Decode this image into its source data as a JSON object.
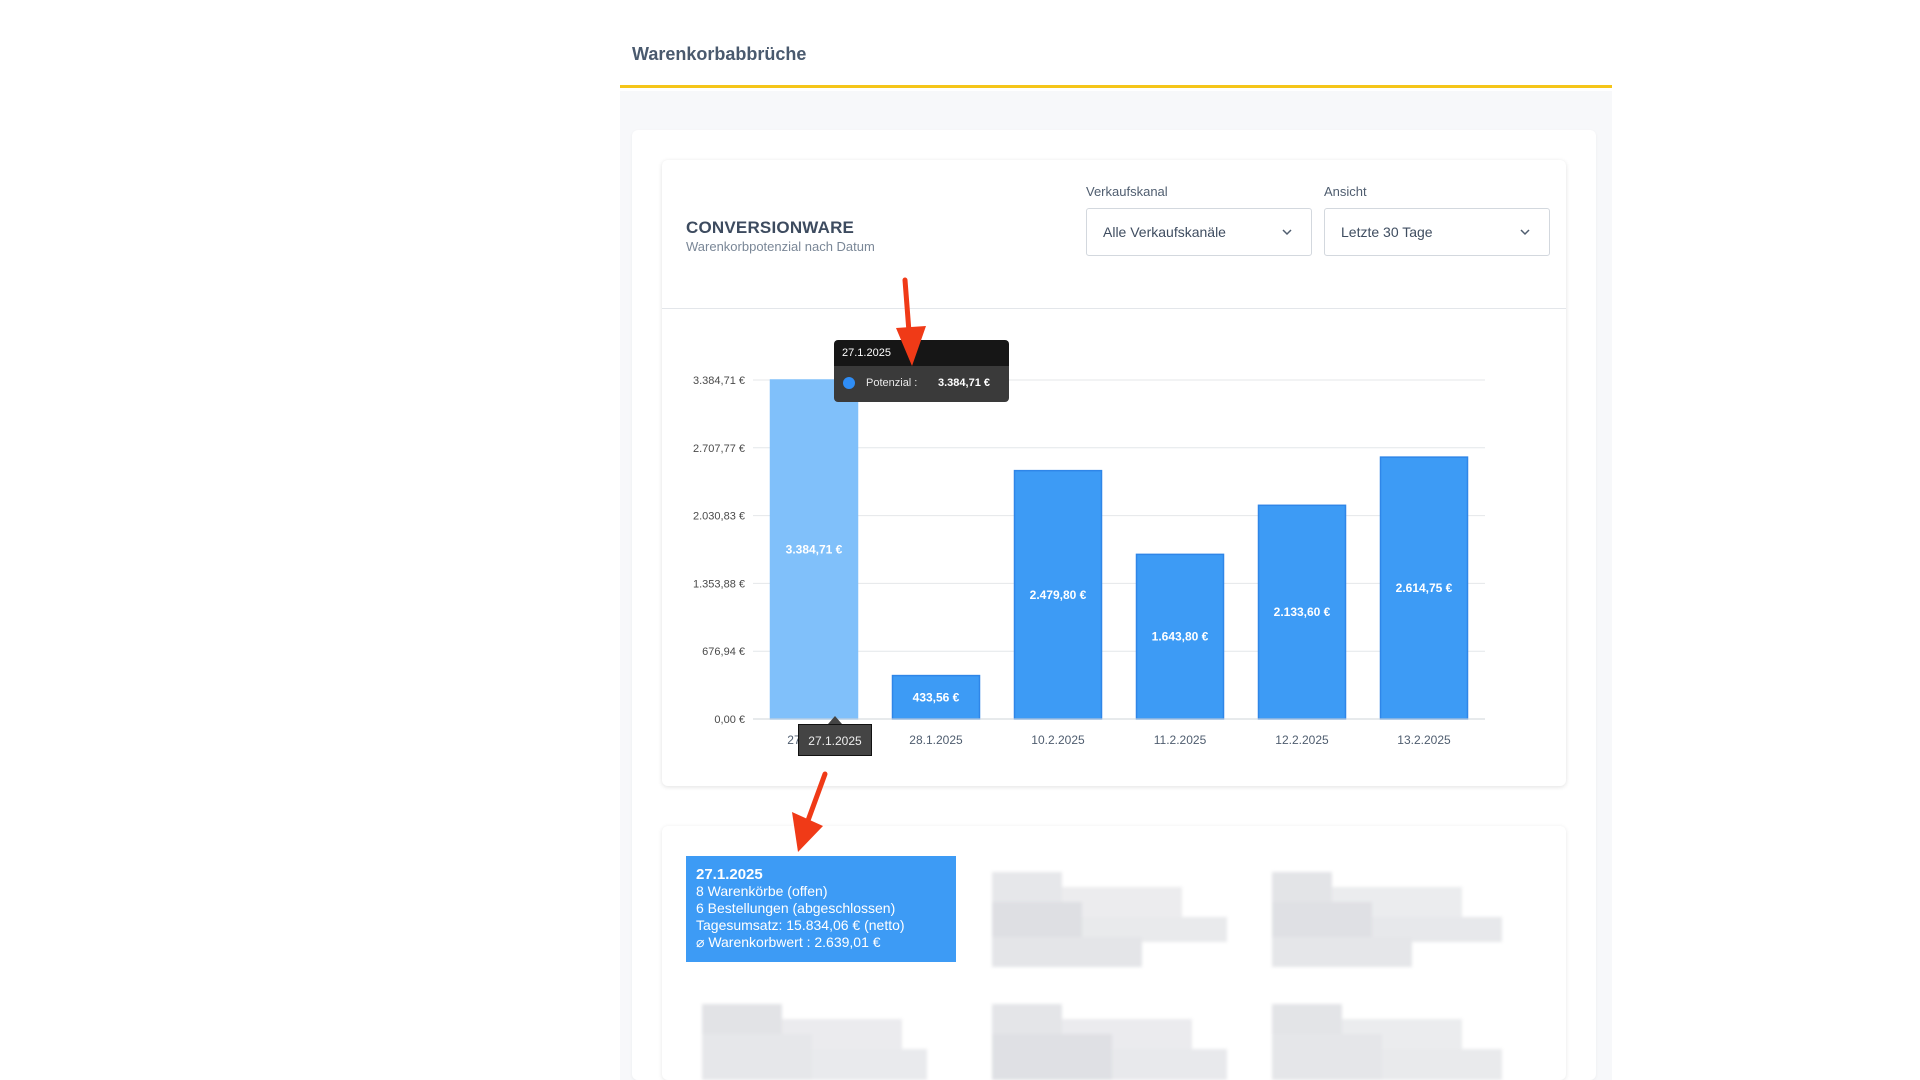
{
  "page": {
    "title": "Warenkorbabbrüche"
  },
  "chart_card": {
    "title": "CONVERSIONWARE",
    "subtitle": "Warenkorbpotenzial nach Datum",
    "filters": {
      "channel": {
        "label": "Verkaufskanal",
        "value": "Alle Verkaufskanäle"
      },
      "view": {
        "label": "Ansicht",
        "value": "Letzte 30 Tage"
      }
    }
  },
  "chart_data": {
    "type": "bar",
    "categories": [
      "27.1.2025",
      "28.1.2025",
      "10.2.2025",
      "11.2.2025",
      "12.2.2025",
      "13.2.2025"
    ],
    "values": [
      3384.71,
      433.56,
      2479.8,
      1643.8,
      2133.6,
      2614.75
    ],
    "value_labels": [
      "3.384,71 €",
      "433,56 €",
      "2.479,80 €",
      "1.643,80 €",
      "2.133,60 €",
      "2.614,75 €"
    ],
    "y_ticks": [
      0,
      676.94,
      1353.88,
      2030.83,
      2707.77,
      3384.71
    ],
    "y_tick_labels": [
      "0,00 €",
      "676,94 €",
      "1.353,88 €",
      "2.030,83 €",
      "2.707,77 €",
      "3.384,71 €"
    ],
    "ylim": [
      0,
      3384.71
    ],
    "grid": true,
    "highlighted_index": 0,
    "colors": {
      "bar": "#3d9bf5",
      "bar_highlight": "#80c0fa",
      "bar_border": "#2f86e8",
      "grid": "#e4e7ea"
    }
  },
  "tooltip": {
    "date": "27.1.2025",
    "series_label": "Potenzial :",
    "value": "3.384,71 €"
  },
  "axis_tooltip": "27.1.2025",
  "day_card": {
    "date": "27.1.2025",
    "lines": [
      "8 Warenkörbe (offen)",
      "6 Bestellungen (abgeschlossen)",
      "Tagesumsatz: 15.834,06 € (netto)",
      "⌀ Warenkorbwert : 2.639,01 €"
    ]
  },
  "colors": {
    "accent_line": "#f5c518",
    "annotation_arrow": "#f03a17",
    "card_bg": "#3d9bf5"
  }
}
